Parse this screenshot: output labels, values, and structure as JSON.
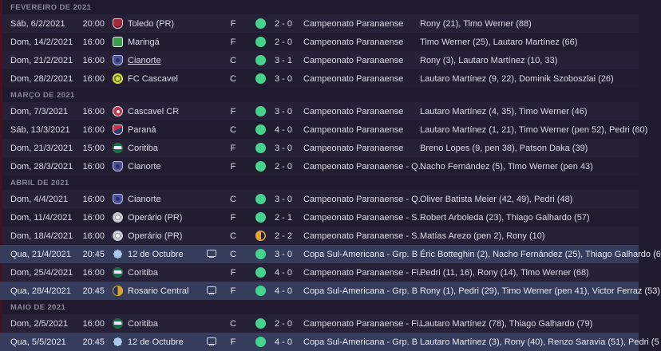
{
  "colors": {
    "background": "#211b30",
    "row_odd": "#272138",
    "row_even": "#221c31",
    "row_highlight": "#363c5c",
    "month_header_bg": "#1f1a2d",
    "month_header_text": "#8d8798",
    "win_indicator": "#45d48d",
    "draw_indicator": "#e5a53e",
    "left_accent_strip": "#44152a",
    "row_text": "#dcd9e6"
  },
  "sections": [
    {
      "header": "FEVEREIRO DE 2021",
      "rows": [
        {
          "date": "Sáb, 6/2/2021",
          "time": "20:00",
          "crest": "toledo",
          "team": "Toledo (PR)",
          "tv": false,
          "venue": "F",
          "result": "win",
          "score": "2 - 0",
          "competition": "Campeonato Paranaense",
          "scorers": "Rony (21), Timo Werner (88)",
          "highlight": false,
          "team_underline": false
        },
        {
          "date": "Dom, 14/2/2021",
          "time": "16:00",
          "crest": "maringa",
          "team": "Maringá",
          "tv": false,
          "venue": "F",
          "result": "win",
          "score": "2 - 0",
          "competition": "Campeonato Paranaense",
          "scorers": "Timo Werner (25), Lautaro Martínez (66)",
          "highlight": false,
          "team_underline": false
        },
        {
          "date": "Dom, 21/2/2021",
          "time": "16:00",
          "crest": "cianorte",
          "team": "Cianorte",
          "tv": false,
          "venue": "C",
          "result": "win",
          "score": "3 - 1",
          "competition": "Campeonato Paranaense",
          "scorers": "Rony (3), Lautaro Martínez (10, 33)",
          "highlight": false,
          "team_underline": true
        },
        {
          "date": "Dom, 28/2/2021",
          "time": "16:00",
          "crest": "fc-cascavel",
          "team": "FC Cascavel",
          "tv": false,
          "venue": "C",
          "result": "win",
          "score": "3 - 0",
          "competition": "Campeonato Paranaense",
          "scorers": "Lautaro Martínez (9, 22), Dominik Szoboszlai (26)",
          "highlight": false,
          "team_underline": false
        }
      ]
    },
    {
      "header": "MARÇO DE 2021",
      "rows": [
        {
          "date": "Dom, 7/3/2021",
          "time": "16:00",
          "crest": "cascavel-cr",
          "team": "Cascavel CR",
          "tv": false,
          "venue": "F",
          "result": "win",
          "score": "3 - 0",
          "competition": "Campeonato Paranaense",
          "scorers": "Lautaro Martínez (4, 35), Timo Werner (46)",
          "highlight": false,
          "team_underline": false
        },
        {
          "date": "Sáb, 13/3/2021",
          "time": "16:00",
          "crest": "parana",
          "team": "Paraná",
          "tv": false,
          "venue": "C",
          "result": "win",
          "score": "4 - 0",
          "competition": "Campeonato Paranaense",
          "scorers": "Lautaro Martínez (1, 21), Timo Werner (pen 52), Pedri (60)",
          "highlight": false,
          "team_underline": false
        },
        {
          "date": "Dom, 21/3/2021",
          "time": "15:00",
          "crest": "coritiba",
          "team": "Coritiba",
          "tv": false,
          "venue": "F",
          "result": "win",
          "score": "3 - 0",
          "competition": "Campeonato Paranaense",
          "scorers": "Breno Lopes (9, pen 38), Patson Daka (39)",
          "highlight": false,
          "team_underline": false
        },
        {
          "date": "Dom, 28/3/2021",
          "time": "16:00",
          "crest": "cianorte",
          "team": "Cianorte",
          "tv": false,
          "venue": "F",
          "result": "win",
          "score": "2 - 0",
          "competition": "Campeonato Paranaense - Q...",
          "scorers": "Nacho Fernández (5), Timo Werner (pen 43)",
          "highlight": false,
          "team_underline": false
        }
      ]
    },
    {
      "header": "ABRIL DE 2021",
      "rows": [
        {
          "date": "Dom, 4/4/2021",
          "time": "16:00",
          "crest": "cianorte",
          "team": "Cianorte",
          "tv": false,
          "venue": "C",
          "result": "win",
          "score": "3 - 0",
          "competition": "Campeonato Paranaense - Q...",
          "scorers": "Oliver Batista Meier (42, 49), Pedri (48)",
          "highlight": false,
          "team_underline": false
        },
        {
          "date": "Dom, 11/4/2021",
          "time": "16:00",
          "crest": "operario",
          "team": "Operário (PR)",
          "tv": false,
          "venue": "F",
          "result": "win",
          "score": "2 - 1",
          "competition": "Campeonato Paranaense - S...",
          "scorers": "Robert Arboleda (23), Thiago Galhardo (57)",
          "highlight": false,
          "team_underline": false
        },
        {
          "date": "Dom, 18/4/2021",
          "time": "16:00",
          "crest": "operario",
          "team": "Operário (PR)",
          "tv": false,
          "venue": "C",
          "result": "draw",
          "score": "2 - 2",
          "competition": "Campeonato Paranaense - S...",
          "scorers": "Matías Arezo (pen 2), Rony (10)",
          "highlight": false,
          "team_underline": false
        },
        {
          "date": "Qua, 21/4/2021",
          "time": "20:45",
          "crest": "doce-octubre",
          "team": "12 de Octubre",
          "tv": true,
          "venue": "C",
          "result": "win",
          "score": "3 - 0",
          "competition": "Copa Sul-Americana - Grp. B",
          "scorers": "Éric Botteghin (2), Nacho Fernández (25), Thiago Galhardo (6",
          "highlight": true,
          "team_underline": false
        },
        {
          "date": "Dom, 25/4/2021",
          "time": "16:00",
          "crest": "coritiba",
          "team": "Coritiba",
          "tv": false,
          "venue": "F",
          "result": "win",
          "score": "4 - 0",
          "competition": "Campeonato Paranaense - Fi...",
          "scorers": "Pedri (11, 16), Rony (14), Timo Werner (68)",
          "highlight": false,
          "team_underline": false
        },
        {
          "date": "Qua, 28/4/2021",
          "time": "20:45",
          "crest": "rosario",
          "team": "Rosario Central",
          "tv": true,
          "venue": "F",
          "result": "win",
          "score": "4 - 0",
          "competition": "Copa Sul-Americana - Grp. B",
          "scorers": "Rony (1), Pedri (29), Timo Werner (pen 41), Victor Ferraz (53)",
          "highlight": true,
          "team_underline": false
        }
      ]
    },
    {
      "header": "MAIO DE 2021",
      "rows": [
        {
          "date": "Dom, 2/5/2021",
          "time": "16:00",
          "crest": "coritiba",
          "team": "Coritiba",
          "tv": false,
          "venue": "C",
          "result": "win",
          "score": "2 - 0",
          "competition": "Campeonato Paranaense - Fi...",
          "scorers": "Lautaro Martínez (78), Thiago Galhardo (79)",
          "highlight": false,
          "team_underline": false
        },
        {
          "date": "Qua, 5/5/2021",
          "time": "20:45",
          "crest": "doce-octubre",
          "team": "12 de Octubre",
          "tv": true,
          "venue": "F",
          "result": "win",
          "score": "4 - 0",
          "competition": "Copa Sul-Americana - Grp. B",
          "scorers": "Lautaro Martínez (3), Rony (40), Renzo Saravia (51), Pedri (5",
          "highlight": true,
          "team_underline": false
        }
      ]
    }
  ]
}
